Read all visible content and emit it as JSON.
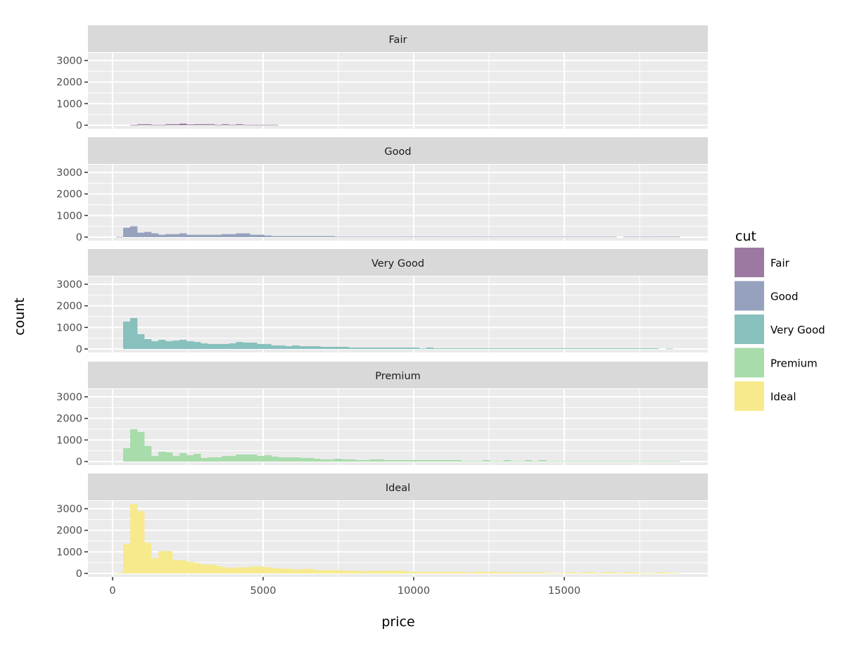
{
  "chart_data": {
    "type": "bar",
    "subtype": "faceted histogram",
    "xlabel": "price",
    "ylabel": "count",
    "xlim": [
      -750,
      19800
    ],
    "ylim": [
      -150,
      3550
    ],
    "x_ticks": [
      0,
      5000,
      10000,
      15000
    ],
    "x_tick_labels": [
      "0",
      "5000",
      "10000",
      "15000"
    ],
    "y_ticks": [
      0,
      1000,
      2000,
      3000
    ],
    "y_tick_labels": [
      "0",
      "1000",
      "2000",
      "3000"
    ],
    "grid": true,
    "bin_start": 117,
    "bin_width": 234,
    "legend": {
      "title": "cut",
      "placement": "right"
    },
    "series": [
      {
        "name": "Fair",
        "color": "#9c79a1",
        "values": [
          0,
          0,
          10,
          45,
          45,
          15,
          15,
          45,
          45,
          75,
          35,
          45,
          45,
          45,
          15,
          45,
          15,
          45,
          15,
          15,
          15,
          15,
          15,
          0,
          0,
          0,
          0,
          0,
          0,
          0,
          0,
          0,
          0,
          0,
          0,
          0,
          0,
          0,
          0,
          0,
          0,
          0,
          0,
          0,
          0,
          0,
          0,
          0,
          0,
          0,
          0,
          0,
          0,
          0,
          0,
          0,
          0,
          0,
          0,
          0,
          0,
          0,
          0,
          0,
          0,
          0,
          0,
          0,
          0,
          0,
          0,
          0,
          0,
          0,
          0,
          0,
          0,
          0,
          0,
          0
        ]
      },
      {
        "name": "Good",
        "color": "#96a2bd",
        "values": [
          10,
          435,
          500,
          205,
          240,
          175,
          110,
          140,
          140,
          175,
          110,
          110,
          110,
          110,
          110,
          140,
          140,
          175,
          175,
          110,
          110,
          75,
          45,
          45,
          45,
          45,
          45,
          45,
          45,
          45,
          45,
          20,
          20,
          20,
          20,
          20,
          20,
          20,
          20,
          20,
          20,
          20,
          20,
          20,
          20,
          20,
          20,
          20,
          20,
          20,
          20,
          20,
          20,
          20,
          20,
          20,
          20,
          20,
          20,
          20,
          20,
          20,
          20,
          20,
          20,
          20,
          20,
          20,
          20,
          20,
          20,
          0,
          20,
          20,
          20,
          20,
          20,
          20,
          20,
          20
        ]
      },
      {
        "name": "Very Good",
        "color": "#87c0bc",
        "values": [
          0,
          1270,
          1435,
          685,
          455,
          360,
          425,
          360,
          390,
          425,
          360,
          325,
          260,
          230,
          230,
          230,
          260,
          325,
          295,
          295,
          230,
          230,
          165,
          165,
          130,
          165,
          130,
          130,
          130,
          100,
          100,
          100,
          100,
          65,
          65,
          65,
          65,
          65,
          65,
          65,
          65,
          65,
          65,
          20,
          65,
          30,
          30,
          30,
          30,
          30,
          30,
          30,
          30,
          30,
          30,
          30,
          30,
          30,
          30,
          30,
          30,
          30,
          30,
          30,
          30,
          30,
          30,
          30,
          30,
          30,
          30,
          30,
          30,
          30,
          30,
          30,
          30,
          0,
          20,
          0
        ]
      },
      {
        "name": "Premium",
        "color": "#a8dcab",
        "values": [
          0,
          620,
          1500,
          1370,
          720,
          260,
          455,
          425,
          260,
          390,
          295,
          360,
          165,
          195,
          195,
          260,
          260,
          325,
          325,
          325,
          260,
          295,
          230,
          195,
          195,
          195,
          165,
          165,
          130,
          100,
          100,
          130,
          100,
          100,
          65,
          65,
          100,
          100,
          65,
          65,
          65,
          65,
          65,
          65,
          65,
          65,
          65,
          65,
          65,
          20,
          20,
          20,
          65,
          20,
          20,
          65,
          20,
          20,
          65,
          20,
          65,
          20,
          20,
          20,
          20,
          20,
          20,
          20,
          20,
          20,
          20,
          20,
          20,
          20,
          20,
          20,
          20,
          20,
          20,
          20
        ]
      },
      {
        "name": "Ideal",
        "color": "#f7ea8c",
        "values": [
          30,
          1360,
          3220,
          2890,
          1420,
          710,
          1030,
          1030,
          610,
          610,
          540,
          480,
          410,
          410,
          350,
          280,
          250,
          280,
          280,
          315,
          315,
          280,
          250,
          220,
          220,
          185,
          185,
          220,
          150,
          150,
          150,
          150,
          120,
          120,
          120,
          90,
          120,
          120,
          120,
          120,
          120,
          75,
          75,
          75,
          75,
          75,
          75,
          75,
          75,
          55,
          55,
          85,
          55,
          85,
          55,
          55,
          55,
          55,
          55,
          55,
          55,
          20,
          20,
          20,
          55,
          20,
          55,
          55,
          20,
          55,
          55,
          20,
          55,
          55,
          20,
          20,
          20,
          55,
          20,
          20
        ]
      }
    ]
  }
}
